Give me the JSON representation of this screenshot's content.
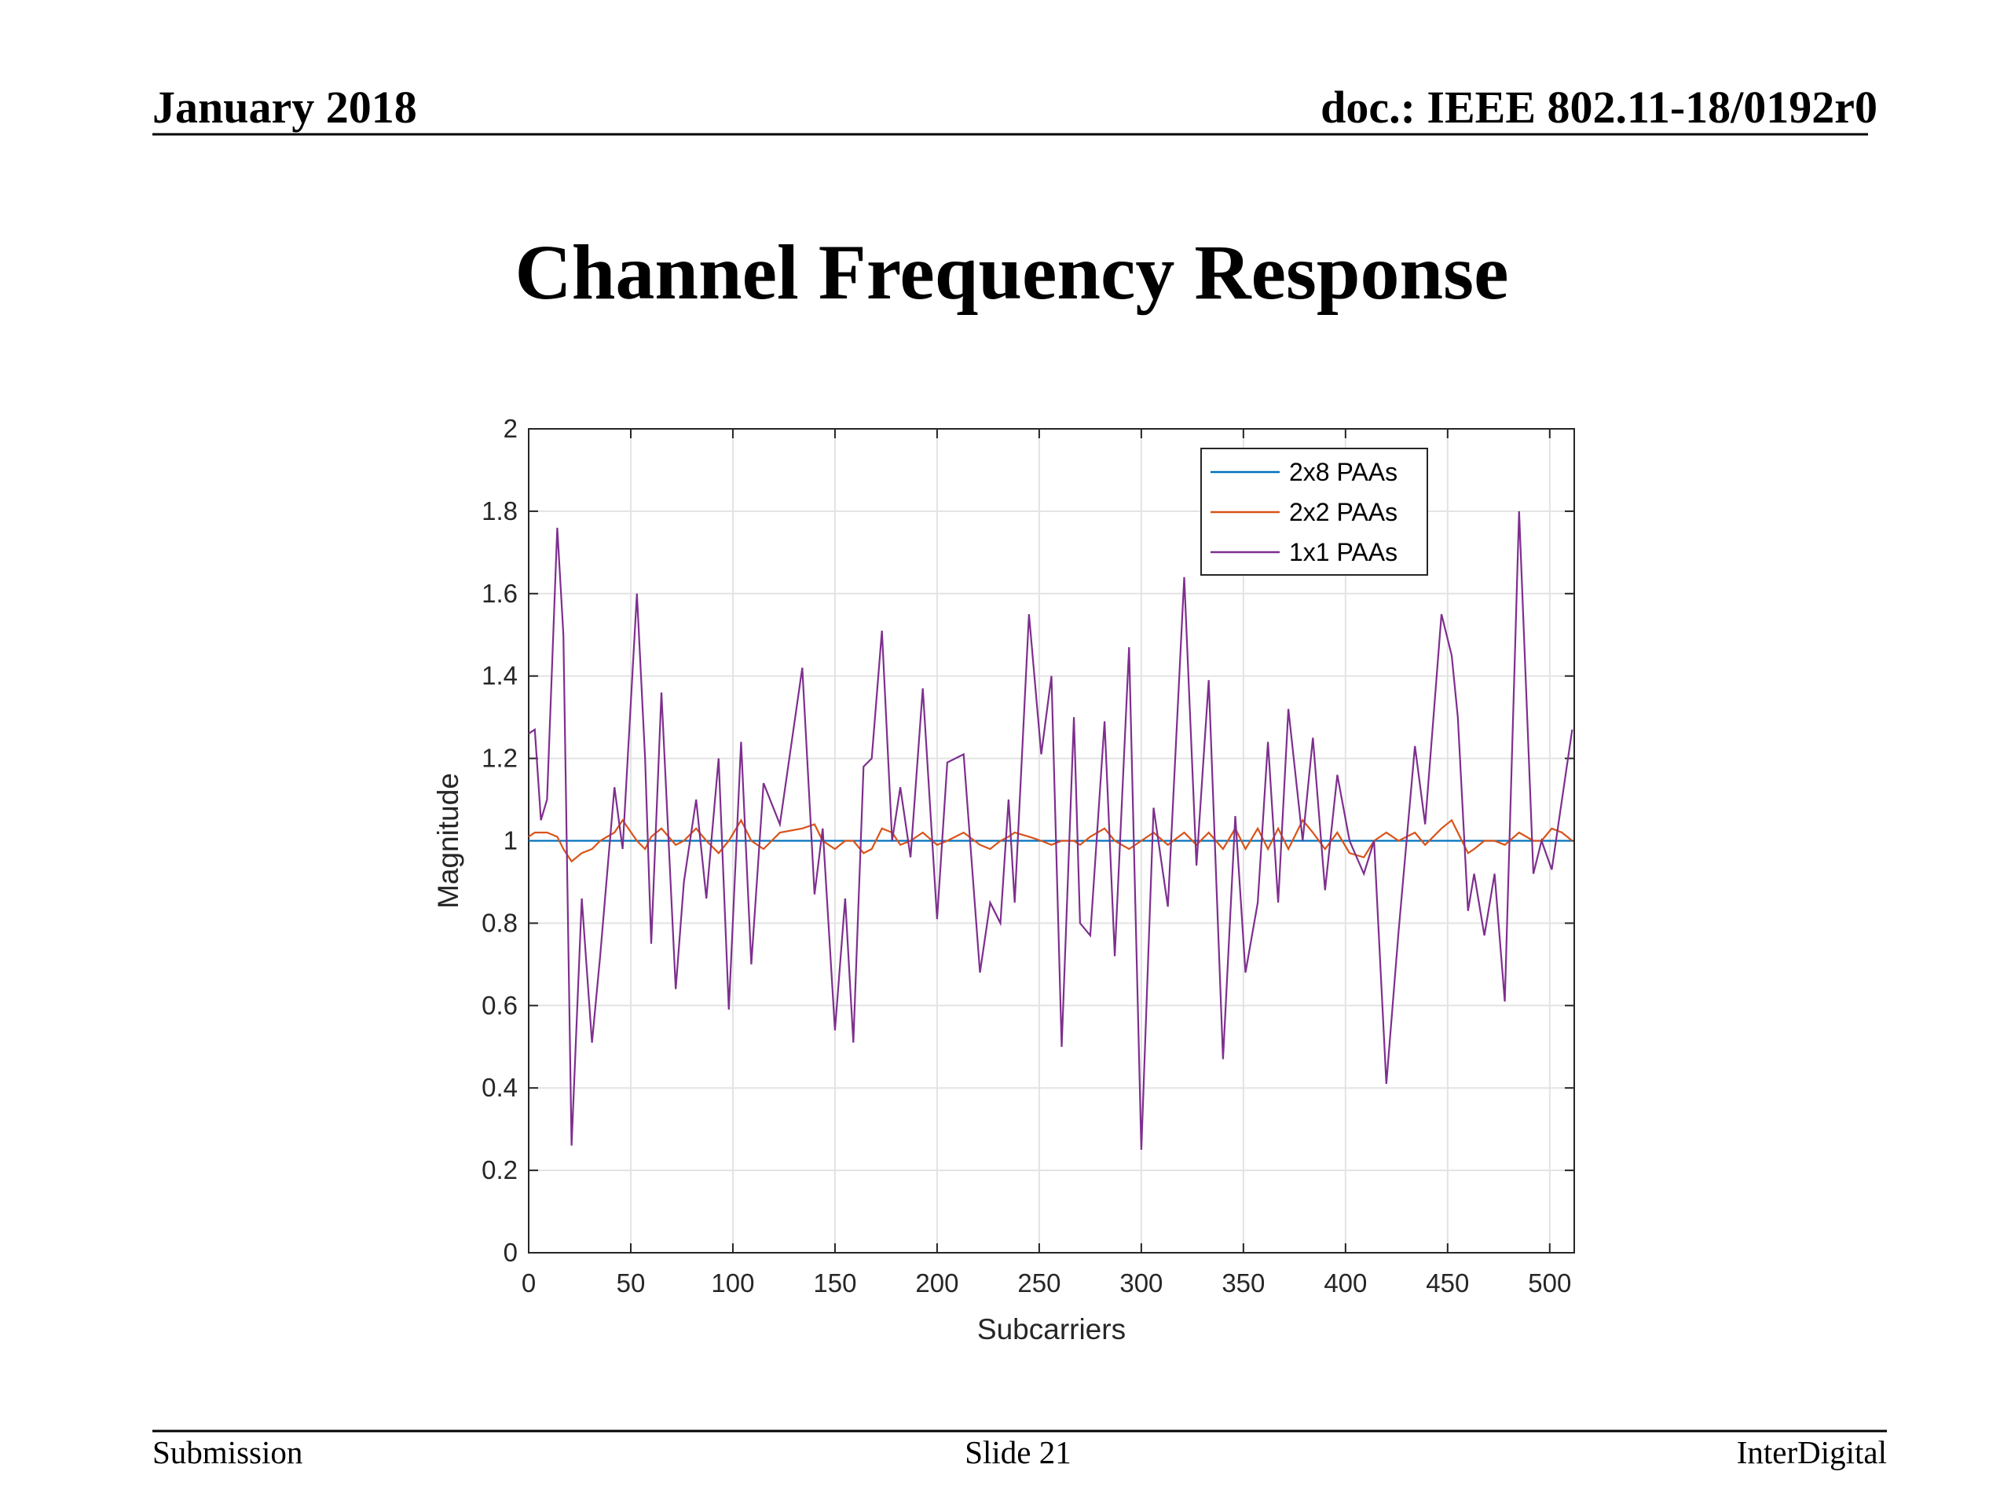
{
  "header": {
    "date": "January 2018",
    "doc": "doc.: IEEE 802.11-18/0192r0"
  },
  "title": "Channel Frequency Response",
  "footer": {
    "left": "Submission",
    "center": "Slide 21",
    "right": "InterDigital"
  },
  "chart_data": {
    "type": "line",
    "xlabel": "Subcarriers",
    "ylabel": "Magnitude",
    "x": [
      0,
      3,
      6,
      9,
      14,
      17,
      21,
      26,
      31,
      35,
      42,
      46,
      53,
      57,
      60,
      65,
      72,
      76,
      82,
      87,
      93,
      98,
      104,
      109,
      115,
      123,
      134,
      140,
      144,
      150,
      155,
      159,
      164,
      168,
      173,
      178,
      182,
      187,
      193,
      200,
      205,
      213,
      221,
      226,
      231,
      235,
      238,
      245,
      251,
      256,
      261,
      267,
      270,
      275,
      282,
      287,
      294,
      300,
      306,
      313,
      321,
      327,
      333,
      340,
      346,
      351,
      357,
      362,
      367,
      372,
      379,
      384,
      390,
      396,
      402,
      409,
      414,
      420,
      426,
      434,
      439,
      447,
      452,
      455,
      460,
      463,
      468,
      473,
      478,
      485,
      492,
      496,
      501,
      506,
      511
    ],
    "series": [
      {
        "name": "2x8 PAAs",
        "color": "#0072bd",
        "values": [
          1,
          1,
          1,
          1,
          1,
          1,
          1,
          1,
          1,
          1,
          1,
          1,
          1,
          1,
          1,
          1,
          1,
          1,
          1,
          1,
          1,
          1,
          1,
          1,
          1,
          1,
          1,
          1,
          1,
          1,
          1,
          1,
          1,
          1,
          1,
          1,
          1,
          1,
          1,
          1,
          1,
          1,
          1,
          1,
          1,
          1,
          1,
          1,
          1,
          1,
          1,
          1,
          1,
          1,
          1,
          1,
          1,
          1,
          1,
          1,
          1,
          1,
          1,
          1,
          1,
          1,
          1,
          1,
          1,
          1,
          1,
          1,
          1,
          1,
          1,
          1,
          1,
          1,
          1,
          1,
          1,
          1,
          1,
          1,
          1,
          1,
          1,
          1,
          1,
          1,
          1,
          1,
          1,
          1,
          1
        ]
      },
      {
        "name": "2x2 PAAs",
        "color": "#d95319",
        "values": [
          1.01,
          1.02,
          1.02,
          1.02,
          1.01,
          0.98,
          0.95,
          0.97,
          0.98,
          1.0,
          1.02,
          1.05,
          1.0,
          0.98,
          1.01,
          1.03,
          0.99,
          1.0,
          1.03,
          1.0,
          0.97,
          1.0,
          1.05,
          1.0,
          0.98,
          1.02,
          1.03,
          1.04,
          1.0,
          0.98,
          1.0,
          1.0,
          0.97,
          0.98,
          1.03,
          1.02,
          0.99,
          1.0,
          1.02,
          0.99,
          1.0,
          1.02,
          0.99,
          0.98,
          1.0,
          1.01,
          1.02,
          1.01,
          1.0,
          0.99,
          1.0,
          1.0,
          0.99,
          1.01,
          1.03,
          1.0,
          0.98,
          1.0,
          1.02,
          0.99,
          1.02,
          0.99,
          1.02,
          0.98,
          1.03,
          0.98,
          1.03,
          0.98,
          1.03,
          0.98,
          1.05,
          1.02,
          0.98,
          1.02,
          0.97,
          0.96,
          1.0,
          1.02,
          1.0,
          1.02,
          0.99,
          1.03,
          1.05,
          1.02,
          0.97,
          0.98,
          1.0,
          1.0,
          0.99,
          1.02,
          1.0,
          1.0,
          1.03,
          1.02,
          1.0
        ]
      },
      {
        "name": "1x1 PAAs",
        "color": "#7e2f8e",
        "values": [
          1.26,
          1.27,
          1.05,
          1.1,
          1.76,
          1.5,
          0.26,
          0.86,
          0.51,
          0.72,
          1.13,
          0.98,
          1.6,
          1.2,
          0.75,
          1.36,
          0.64,
          0.9,
          1.1,
          0.86,
          1.2,
          0.59,
          1.24,
          0.7,
          1.14,
          1.04,
          1.42,
          0.87,
          1.03,
          0.54,
          0.86,
          0.51,
          1.18,
          1.2,
          1.51,
          1.0,
          1.13,
          0.96,
          1.37,
          0.81,
          1.19,
          1.21,
          0.68,
          0.85,
          0.8,
          1.1,
          0.85,
          1.55,
          1.21,
          1.4,
          0.5,
          1.3,
          0.8,
          0.77,
          1.29,
          0.72,
          1.47,
          0.25,
          1.08,
          0.84,
          1.64,
          0.94,
          1.39,
          0.47,
          1.06,
          0.68,
          0.85,
          1.24,
          0.85,
          1.32,
          1.0,
          1.25,
          0.88,
          1.16,
          1.0,
          0.92,
          1.0,
          0.41,
          0.78,
          1.23,
          1.04,
          1.55,
          1.45,
          1.3,
          0.83,
          0.92,
          0.77,
          0.92,
          0.61,
          1.8,
          0.92,
          1.0,
          0.93,
          1.1,
          1.27
        ]
      }
    ],
    "xlim": [
      0,
      512
    ],
    "ylim": [
      0,
      2
    ],
    "xticks": [
      0,
      50,
      100,
      150,
      200,
      250,
      300,
      350,
      400,
      450,
      500
    ],
    "yticks": [
      0,
      0.2,
      0.4,
      0.6,
      0.8,
      1,
      1.2,
      1.4,
      1.6,
      1.8,
      2
    ],
    "grid": true,
    "legend": "northeast"
  }
}
